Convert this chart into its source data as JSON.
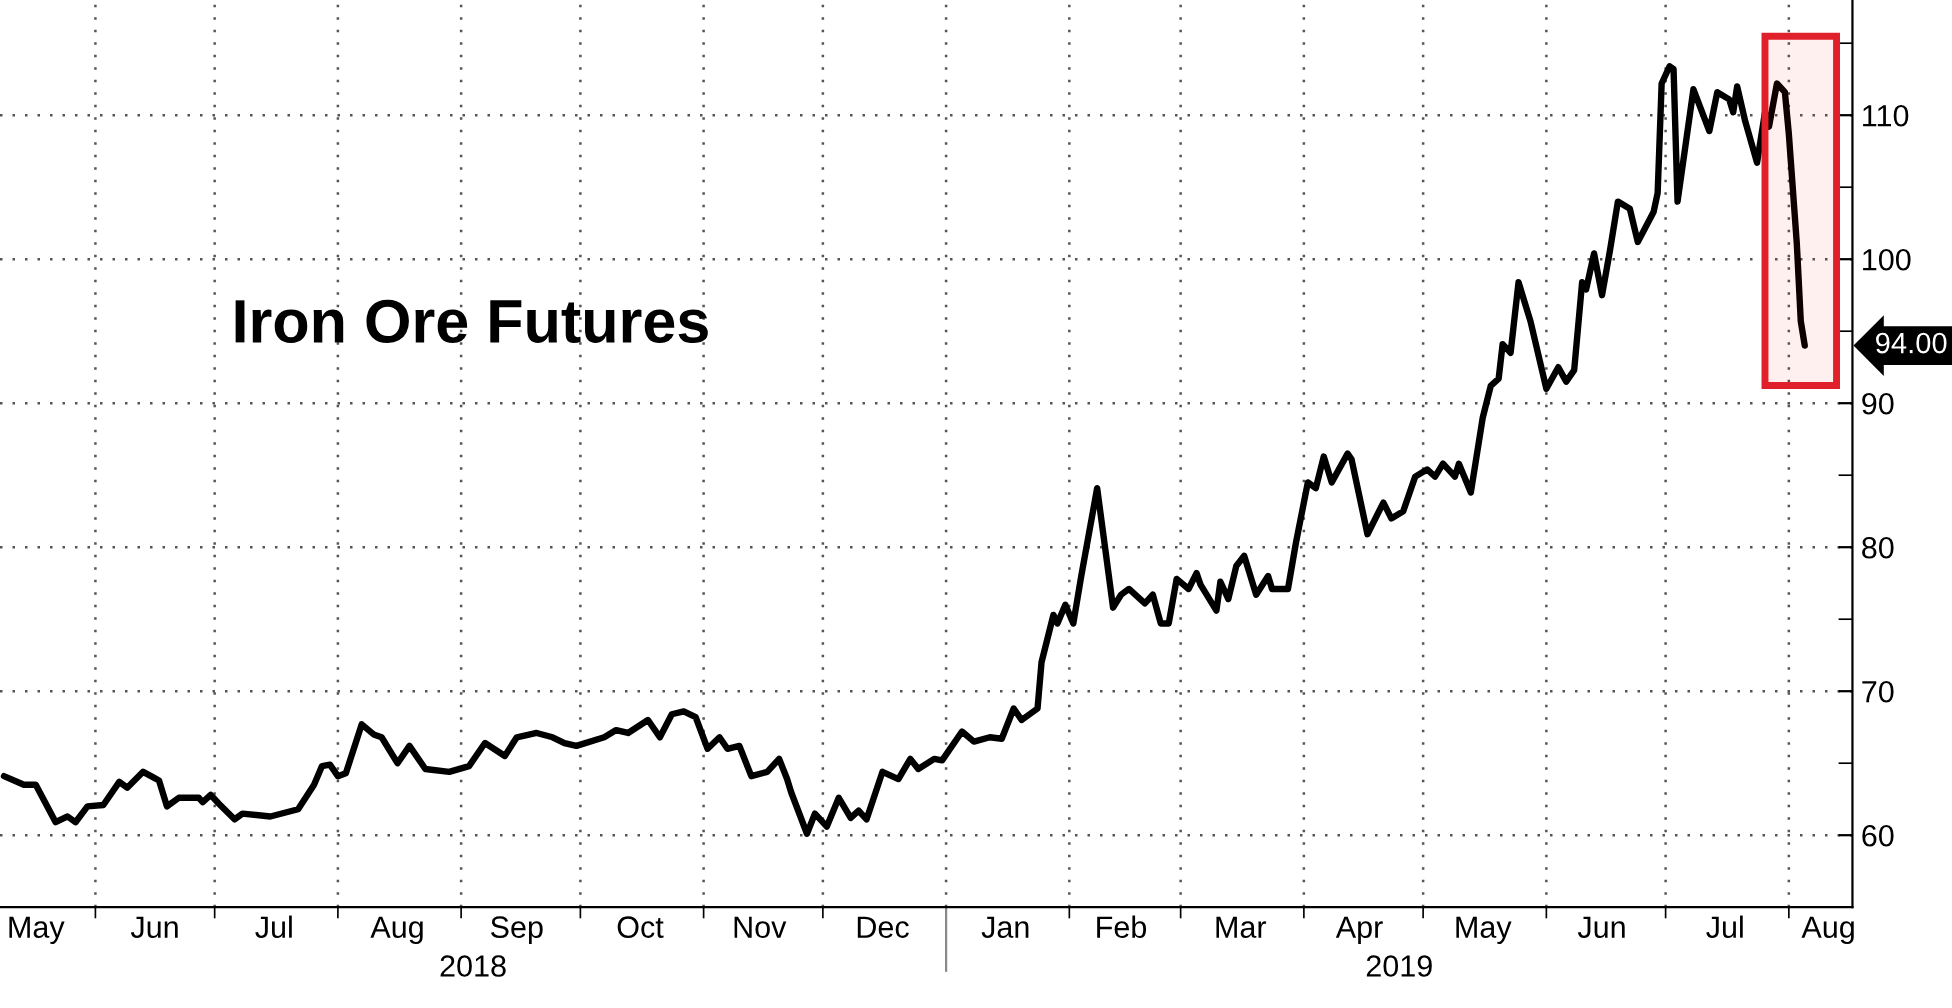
{
  "chart_data": {
    "type": "line",
    "title": "Iron Ore Futures",
    "x": [
      "2018-05-09",
      "2018-05-14",
      "2018-05-17",
      "2018-05-22",
      "2018-05-25",
      "2018-05-27",
      "2018-05-30",
      "2018-06-03",
      "2018-06-07",
      "2018-06-09",
      "2018-06-13",
      "2018-06-15",
      "2018-06-17",
      "2018-06-19",
      "2018-06-22",
      "2018-06-27",
      "2018-06-28",
      "2018-06-30",
      "2018-07-02",
      "2018-07-06",
      "2018-07-08",
      "2018-07-15",
      "2018-07-22",
      "2018-07-26",
      "2018-07-28",
      "2018-07-30",
      "2018-08-01",
      "2018-08-03",
      "2018-08-07",
      "2018-08-10",
      "2018-08-12",
      "2018-08-16",
      "2018-08-19",
      "2018-08-23",
      "2018-08-29",
      "2018-09-03",
      "2018-09-07",
      "2018-09-12",
      "2018-09-15",
      "2018-09-20",
      "2018-09-24",
      "2018-09-27",
      "2018-09-30",
      "2018-10-07",
      "2018-10-10",
      "2018-10-13",
      "2018-10-18",
      "2018-10-21",
      "2018-10-24",
      "2018-10-27",
      "2018-10-30",
      "2018-11-02",
      "2018-11-05",
      "2018-11-07",
      "2018-11-10",
      "2018-11-13",
      "2018-11-17",
      "2018-11-20",
      "2018-11-22",
      "2018-11-23",
      "2018-11-27",
      "2018-11-29",
      "2018-12-02",
      "2018-12-05",
      "2018-12-08",
      "2018-12-10",
      "2018-12-12",
      "2018-12-16",
      "2018-12-20",
      "2018-12-23",
      "2018-12-25",
      "2018-12-29",
      "2018-12-31",
      "2019-01-05",
      "2019-01-08",
      "2019-01-12",
      "2019-01-15",
      "2019-01-18",
      "2019-01-20",
      "2019-01-24",
      "2019-01-25",
      "2019-01-28",
      "2019-01-29",
      "2019-01-31",
      "2019-02-02",
      "2019-02-04",
      "2019-02-08",
      "2019-02-12",
      "2019-02-14",
      "2019-02-16",
      "2019-02-20",
      "2019-02-22",
      "2019-02-24",
      "2019-02-26",
      "2019-02-28",
      "2019-03-03",
      "2019-03-05",
      "2019-03-06",
      "2019-03-10",
      "2019-03-11",
      "2019-03-13",
      "2019-03-15",
      "2019-03-17",
      "2019-03-20",
      "2019-03-23",
      "2019-03-24",
      "2019-03-28",
      "2019-03-30",
      "2019-04-02",
      "2019-04-04",
      "2019-04-06",
      "2019-04-08",
      "2019-04-12",
      "2019-04-13",
      "2019-04-17",
      "2019-04-21",
      "2019-04-23",
      "2019-04-26",
      "2019-04-29",
      "2019-05-02",
      "2019-05-04",
      "2019-05-06",
      "2019-05-09",
      "2019-05-10",
      "2019-05-13",
      "2019-05-16",
      "2019-05-18",
      "2019-05-20",
      "2019-05-21",
      "2019-05-23",
      "2019-05-25",
      "2019-05-28",
      "2019-06-01",
      "2019-06-04",
      "2019-06-06",
      "2019-06-08",
      "2019-06-10",
      "2019-06-11",
      "2019-06-13",
      "2019-06-15",
      "2019-06-17",
      "2019-06-19",
      "2019-06-22",
      "2019-06-24",
      "2019-06-28",
      "2019-06-29",
      "2019-06-30",
      "2019-07-02",
      "2019-07-03",
      "2019-07-04",
      "2019-07-08",
      "2019-07-12",
      "2019-07-14",
      "2019-07-17",
      "2019-07-18",
      "2019-07-19",
      "2019-07-21",
      "2019-07-24",
      "2019-07-26",
      "2019-07-27",
      "2019-07-29",
      "2019-07-31",
      "2019-08-01",
      "2019-08-03",
      "2019-08-04",
      "2019-08-05"
    ],
    "series": [
      {
        "color": "#000000",
        "values": [
          64.1,
          63.5,
          63.5,
          60.9,
          61.3,
          60.9,
          62.0,
          62.1,
          63.7,
          63.3,
          64.4,
          64.1,
          63.8,
          62.0,
          62.6,
          62.6,
          62.3,
          62.8,
          62.2,
          61.1,
          61.5,
          61.3,
          61.8,
          63.5,
          64.8,
          64.9,
          64.1,
          64.3,
          67.7,
          67.0,
          66.8,
          65.0,
          66.2,
          64.6,
          64.4,
          64.8,
          66.4,
          65.5,
          66.8,
          67.1,
          66.8,
          66.4,
          66.2,
          66.8,
          67.3,
          67.1,
          68.0,
          66.8,
          68.4,
          68.6,
          68.2,
          66.0,
          66.8,
          66.0,
          66.2,
          64.1,
          64.4,
          65.3,
          63.9,
          63.0,
          60.1,
          61.5,
          60.6,
          62.6,
          61.2,
          61.7,
          61.1,
          64.4,
          63.9,
          65.3,
          64.6,
          65.3,
          65.2,
          67.2,
          66.5,
          66.8,
          66.7,
          68.8,
          68.0,
          68.8,
          72.0,
          75.3,
          74.7,
          76.0,
          74.7,
          78.0,
          84.1,
          75.8,
          76.7,
          77.1,
          76.1,
          76.7,
          74.7,
          74.7,
          77.8,
          77.1,
          78.2,
          77.4,
          75.6,
          77.6,
          76.4,
          78.7,
          79.4,
          76.7,
          78.0,
          77.1,
          77.1,
          80.3,
          84.5,
          84.1,
          86.3,
          84.5,
          86.5,
          86.1,
          80.9,
          83.1,
          82.0,
          82.5,
          84.9,
          85.4,
          84.9,
          85.8,
          84.9,
          85.8,
          83.8,
          89.0,
          91.2,
          91.7,
          94.1,
          93.5,
          98.4,
          95.7,
          91.0,
          92.5,
          91.5,
          92.3,
          98.4,
          97.9,
          100.4,
          97.5,
          100.6,
          104.0,
          103.5,
          101.2,
          103.3,
          104.6,
          112.2,
          113.4,
          113.2,
          104.0,
          111.8,
          108.9,
          111.6,
          111.1,
          110.2,
          112.0,
          109.6,
          106.7,
          110.2,
          109.2,
          112.2,
          111.6,
          108.7,
          101.1,
          95.7,
          94.0
        ]
      }
    ],
    "xlim": [
      "2018-05-08",
      "2019-08-17"
    ],
    "xticks": [
      {
        "value": "2018-06-01",
        "label": null
      },
      {
        "value": "2018-07-01",
        "label": null
      },
      {
        "value": "2018-08-01",
        "label": null
      },
      {
        "value": "2018-09-01",
        "label": null
      },
      {
        "value": "2018-10-01",
        "label": null
      },
      {
        "value": "2018-11-01",
        "label": null
      },
      {
        "value": "2018-12-01",
        "label": null
      },
      {
        "value": "2019-01-01",
        "label": null
      },
      {
        "value": "2019-02-01",
        "label": null
      },
      {
        "value": "2019-03-01",
        "label": null
      },
      {
        "value": "2019-04-01",
        "label": null
      },
      {
        "value": "2019-05-01",
        "label": null
      },
      {
        "value": "2019-06-01",
        "label": null
      },
      {
        "value": "2019-07-01",
        "label": null
      },
      {
        "value": "2019-08-01",
        "label": null
      },
      {
        "value": "2018-05-17",
        "label": "May"
      },
      {
        "value": "2018-06-16",
        "label": "Jun"
      },
      {
        "value": "2018-07-16",
        "label": "Jul"
      },
      {
        "value": "2018-08-16",
        "label": "Aug"
      },
      {
        "value": "2018-09-15",
        "label": "Sep"
      },
      {
        "value": "2018-10-16",
        "label": "Oct"
      },
      {
        "value": "2018-11-15",
        "label": "Nov"
      },
      {
        "value": "2018-12-16",
        "label": "Dec"
      },
      {
        "value": "2019-01-16",
        "label": "Jan"
      },
      {
        "value": "2019-02-14",
        "label": "Feb"
      },
      {
        "value": "2019-03-16",
        "label": "Mar"
      },
      {
        "value": "2019-04-15",
        "label": "Apr"
      },
      {
        "value": "2019-05-16",
        "label": "May"
      },
      {
        "value": "2019-06-15",
        "label": "Jun"
      },
      {
        "value": "2019-07-16",
        "label": "Jul"
      },
      {
        "value": "2019-08-11",
        "label": "Aug"
      }
    ],
    "ylim": [
      55,
      118
    ],
    "yticks": [
      60,
      70,
      80,
      90,
      100,
      110,
      {
        "value": 65,
        "label": null
      },
      {
        "value": 75,
        "label": null
      },
      {
        "value": 85,
        "label": null
      },
      {
        "value": 95,
        "label": null
      },
      {
        "value": 105,
        "label": null
      },
      {
        "value": 115,
        "label": null
      }
    ],
    "grid": true,
    "bands": [
      {
        "axis": "x",
        "from": "2019-07-26",
        "to": "2019-08-13",
        "color": "#e0202a"
      }
    ],
    "annotations": [
      {
        "text": "94.00",
        "x": "2019-08-05",
        "y": 94
      },
      "2018",
      "2019"
    ]
  }
}
